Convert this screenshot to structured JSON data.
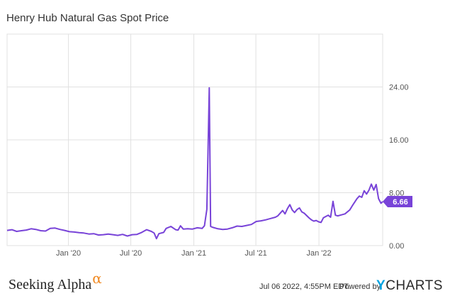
{
  "chart_data": {
    "type": "line",
    "title": "Henry Hub Natural Gas Spot Price",
    "xlabel": "",
    "ylabel": "",
    "ylim": [
      0,
      32
    ],
    "yticks": [
      0,
      8,
      16,
      24
    ],
    "ytick_labels": [
      "0.00",
      "8.00",
      "16.00",
      "24.00"
    ],
    "xtick_labels": [
      {
        "label": "Jan '20",
        "date": "2020-01-01"
      },
      {
        "label": "Jul '20",
        "date": "2020-07-01"
      },
      {
        "label": "Jan '21",
        "date": "2021-01-01"
      },
      {
        "label": "Jul '21",
        "date": "2021-07-01"
      },
      {
        "label": "Jan '22",
        "date": "2022-01-01"
      }
    ],
    "xlim": [
      "2019-07-06",
      "2022-07-06"
    ],
    "grid": true,
    "series": [
      {
        "color": "#7843d8",
        "last_value_label": "6.66",
        "points": [
          [
            "2019-07-06",
            2.3
          ],
          [
            "2019-07-20",
            2.4
          ],
          [
            "2019-08-03",
            2.15
          ],
          [
            "2019-08-17",
            2.25
          ],
          [
            "2019-08-31",
            2.35
          ],
          [
            "2019-09-14",
            2.55
          ],
          [
            "2019-09-28",
            2.45
          ],
          [
            "2019-10-12",
            2.25
          ],
          [
            "2019-10-26",
            2.2
          ],
          [
            "2019-11-09",
            2.6
          ],
          [
            "2019-11-23",
            2.65
          ],
          [
            "2019-12-07",
            2.45
          ],
          [
            "2019-12-21",
            2.3
          ],
          [
            "2020-01-04",
            2.1
          ],
          [
            "2020-01-18",
            2.05
          ],
          [
            "2020-02-01",
            1.95
          ],
          [
            "2020-02-15",
            1.9
          ],
          [
            "2020-03-01",
            1.75
          ],
          [
            "2020-03-15",
            1.8
          ],
          [
            "2020-03-29",
            1.6
          ],
          [
            "2020-04-12",
            1.65
          ],
          [
            "2020-04-26",
            1.75
          ],
          [
            "2020-05-10",
            1.65
          ],
          [
            "2020-05-24",
            1.55
          ],
          [
            "2020-06-07",
            1.7
          ],
          [
            "2020-06-21",
            1.45
          ],
          [
            "2020-07-05",
            1.65
          ],
          [
            "2020-07-19",
            1.7
          ],
          [
            "2020-08-02",
            2.0
          ],
          [
            "2020-08-16",
            2.4
          ],
          [
            "2020-08-30",
            2.15
          ],
          [
            "2020-09-07",
            1.9
          ],
          [
            "2020-09-14",
            1.05
          ],
          [
            "2020-09-21",
            1.8
          ],
          [
            "2020-10-05",
            2.0
          ],
          [
            "2020-10-12",
            2.6
          ],
          [
            "2020-10-26",
            2.9
          ],
          [
            "2020-11-09",
            2.4
          ],
          [
            "2020-11-16",
            2.35
          ],
          [
            "2020-11-23",
            3.0
          ],
          [
            "2020-12-01",
            2.5
          ],
          [
            "2020-12-14",
            2.55
          ],
          [
            "2020-12-28",
            2.5
          ],
          [
            "2021-01-11",
            2.7
          ],
          [
            "2021-01-25",
            2.6
          ],
          [
            "2021-02-01",
            3.0
          ],
          [
            "2021-02-08",
            5.5
          ],
          [
            "2021-02-15",
            23.86
          ],
          [
            "2021-02-19",
            2.9
          ],
          [
            "2021-02-26",
            2.75
          ],
          [
            "2021-03-12",
            2.55
          ],
          [
            "2021-03-26",
            2.45
          ],
          [
            "2021-04-09",
            2.5
          ],
          [
            "2021-04-23",
            2.7
          ],
          [
            "2021-05-07",
            2.95
          ],
          [
            "2021-05-21",
            2.9
          ],
          [
            "2021-06-04",
            3.05
          ],
          [
            "2021-06-18",
            3.2
          ],
          [
            "2021-07-02",
            3.65
          ],
          [
            "2021-07-16",
            3.75
          ],
          [
            "2021-07-30",
            3.9
          ],
          [
            "2021-08-13",
            4.1
          ],
          [
            "2021-08-27",
            4.3
          ],
          [
            "2021-09-03",
            4.5
          ],
          [
            "2021-09-17",
            5.3
          ],
          [
            "2021-09-24",
            4.8
          ],
          [
            "2021-10-01",
            5.6
          ],
          [
            "2021-10-08",
            6.2
          ],
          [
            "2021-10-15",
            5.4
          ],
          [
            "2021-10-22",
            5.0
          ],
          [
            "2021-10-29",
            5.45
          ],
          [
            "2021-11-05",
            5.7
          ],
          [
            "2021-11-12",
            5.1
          ],
          [
            "2021-11-19",
            4.9
          ],
          [
            "2021-12-03",
            4.2
          ],
          [
            "2021-12-10",
            3.9
          ],
          [
            "2021-12-17",
            3.7
          ],
          [
            "2021-12-24",
            3.8
          ],
          [
            "2021-12-31",
            3.6
          ],
          [
            "2022-01-07",
            3.5
          ],
          [
            "2022-01-14",
            4.2
          ],
          [
            "2022-01-21",
            4.4
          ],
          [
            "2022-01-28",
            4.6
          ],
          [
            "2022-02-04",
            4.3
          ],
          [
            "2022-02-11",
            6.7
          ],
          [
            "2022-02-18",
            4.6
          ],
          [
            "2022-02-25",
            4.5
          ],
          [
            "2022-03-04",
            4.6
          ],
          [
            "2022-03-18",
            4.8
          ],
          [
            "2022-04-01",
            5.4
          ],
          [
            "2022-04-08",
            6.0
          ],
          [
            "2022-04-22",
            7.1
          ],
          [
            "2022-04-29",
            7.5
          ],
          [
            "2022-05-06",
            7.3
          ],
          [
            "2022-05-13",
            8.3
          ],
          [
            "2022-05-20",
            7.8
          ],
          [
            "2022-05-27",
            8.4
          ],
          [
            "2022-06-03",
            9.3
          ],
          [
            "2022-06-10",
            8.4
          ],
          [
            "2022-06-17",
            9.25
          ],
          [
            "2022-06-24",
            7.1
          ],
          [
            "2022-07-01",
            6.4
          ],
          [
            "2022-07-06",
            6.66
          ]
        ]
      }
    ]
  },
  "footer": {
    "brand_text": "Seeking Alpha",
    "brand_symbol": "α",
    "timestamp": "Jul 06 2022, 4:55PM EDT.",
    "powered_by": "Powered by",
    "ycharts_y": "Y",
    "ycharts_rest": "CHARTS"
  },
  "colors": {
    "line": "#7843d8",
    "grid": "#e1e1e1",
    "axis_text": "#555555",
    "brand_alpha": "#f08a24",
    "ycharts_accent": "#00a2e0"
  }
}
